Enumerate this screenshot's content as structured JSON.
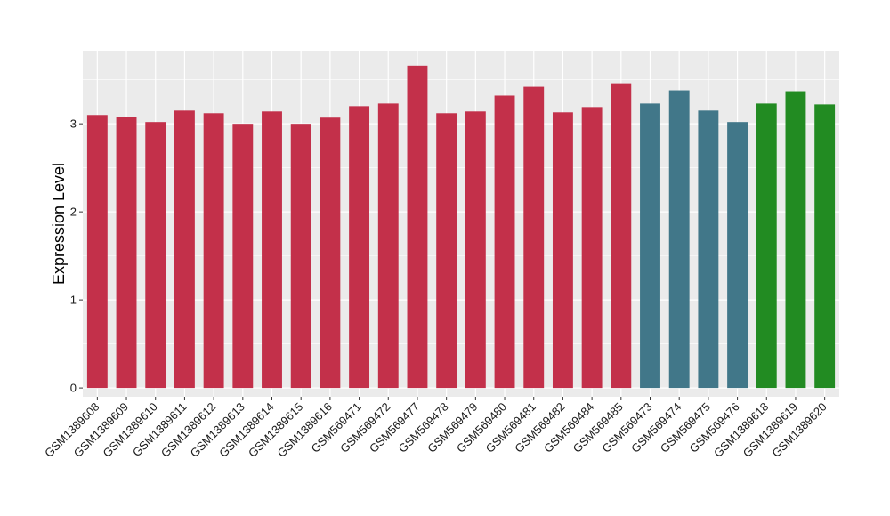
{
  "chart_data": {
    "type": "bar",
    "title": "",
    "xlabel": "",
    "ylabel": "Expression Level",
    "ylim": [
      -0.1,
      3.83
    ],
    "yticks": [
      0,
      1,
      2,
      3
    ],
    "grid": true,
    "legend": "none",
    "categories": [
      "GSM1389608",
      "GSM1389609",
      "GSM1389610",
      "GSM1389611",
      "GSM1389612",
      "GSM1389613",
      "GSM1389614",
      "GSM1389615",
      "GSM1389616",
      "GSM569471",
      "GSM569472",
      "GSM569477",
      "GSM569478",
      "GSM569479",
      "GSM569480",
      "GSM569481",
      "GSM569482",
      "GSM569484",
      "GSM569485",
      "GSM569473",
      "GSM569474",
      "GSM569475",
      "GSM569476",
      "GSM1389618",
      "GSM1389619",
      "GSM1389620"
    ],
    "values": [
      3.1,
      3.08,
      3.02,
      3.15,
      3.12,
      3.0,
      3.14,
      3.0,
      3.07,
      3.2,
      3.23,
      3.66,
      3.12,
      3.14,
      3.32,
      3.42,
      3.13,
      3.19,
      3.46,
      3.23,
      3.38,
      3.15,
      3.02,
      3.23,
      3.37,
      3.22
    ],
    "bar_colors": [
      "#C3304A",
      "#C3304A",
      "#C3304A",
      "#C3304A",
      "#C3304A",
      "#C3304A",
      "#C3304A",
      "#C3304A",
      "#C3304A",
      "#C3304A",
      "#C3304A",
      "#C3304A",
      "#C3304A",
      "#C3304A",
      "#C3304A",
      "#C3304A",
      "#C3304A",
      "#C3304A",
      "#C3304A",
      "#417789",
      "#417789",
      "#417789",
      "#417789",
      "#228B22",
      "#228B22",
      "#228B22"
    ],
    "panel_background": "#EBEBEB",
    "grid_color": "#FFFFFF"
  }
}
